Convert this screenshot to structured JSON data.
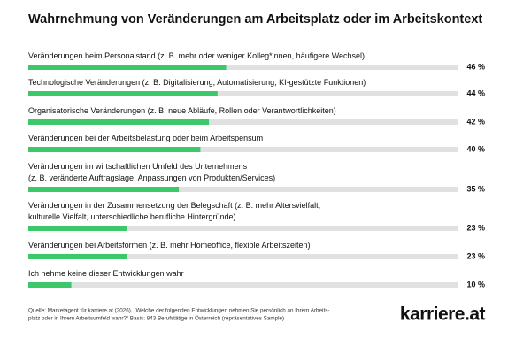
{
  "chart_data": {
    "type": "hbar",
    "title": "Wahrnehmung von Veränderungen am Arbeitsplatz oder im Arbeitskontext",
    "categories": [
      "Veränderungen beim Personalstand (z. B. mehr oder weniger Kolleg*innen, häufigere Wechsel)",
      "Technologische Veränderungen (z. B. Digitalisierung, Automatisierung, KI-gestützte Funktionen)",
      "Organisatorische Veränderungen (z. B. neue Abläufe, Rollen oder Verantwortlichkeiten)",
      "Veränderungen bei der Arbeitsbelastung oder beim Arbeitspensum",
      "Veränderungen im wirtschaftlichen Umfeld des Unternehmens\n(z. B. veränderte Auftragslage, Anpassungen von Produkten/Services)",
      "Veränderungen in der Zusammensetzung der Belegschaft (z. B. mehr Altersvielfalt,\nkulturelle Vielfalt, unterschiedliche berufliche Hintergründe)",
      "Veränderungen bei Arbeitsformen (z. B. mehr Homeoffice, flexible Arbeitszeiten)",
      "Ich nehme keine dieser Entwicklungen wahr"
    ],
    "values": [
      46,
      44,
      42,
      40,
      35,
      23,
      23,
      10
    ],
    "value_labels": [
      "46 %",
      "44 %",
      "42 %",
      "40 %",
      "35 %",
      "23 %",
      "23 %",
      "10 %"
    ],
    "color": "#3cc86a",
    "track_color": "#e1e1e1",
    "xlim": [
      0,
      100
    ],
    "source": [
      "Quelle: Marketagent für karriere.at (2026), „Welche der folgenden Entwicklungen nehmen Sie persönlich an Ihrem Arbeits-",
      "platz oder in Ihrem Arbeitsumfeld wahr?“ Basis: 843 Berufstätige in Österreich (repräsentatives Sample)"
    ],
    "logo": "karriere.at"
  }
}
